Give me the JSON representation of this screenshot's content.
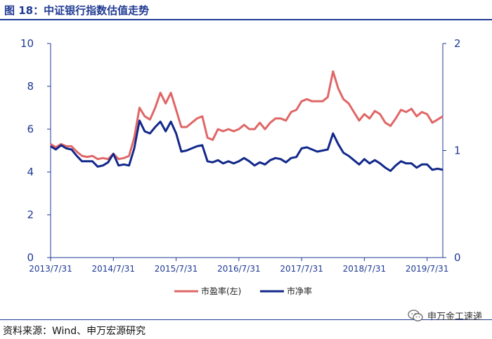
{
  "figure_title": "图 18：中证银行指数估值走势",
  "source": "资料来源：Wind、申万宏源研究",
  "watermark": "申万金工速递",
  "colors": {
    "title": "#1f3a93",
    "axis": "#1f3a93",
    "pe": "#e06666",
    "pb": "#12288a"
  },
  "chart_data": {
    "type": "line",
    "x_ticks": [
      "2013/7/31",
      "2014/7/31",
      "2015/7/31",
      "2016/7/31",
      "2017/7/31",
      "2018/7/31",
      "2019/7/31"
    ],
    "left_axis": {
      "ylim": [
        0,
        10
      ],
      "ticks": [
        "0",
        "2",
        "4",
        "6",
        "8",
        "10"
      ]
    },
    "right_axis": {
      "ylim": [
        0,
        2
      ],
      "ticks": [
        "0",
        "1",
        "2"
      ]
    },
    "legend": "bottom-center",
    "series": [
      {
        "name": "市盈率(左)",
        "axis": "left",
        "color": "#e06666",
        "values": [
          5.3,
          5.15,
          5.3,
          5.2,
          5.2,
          4.95,
          4.75,
          4.7,
          4.75,
          4.6,
          4.65,
          4.6,
          4.85,
          4.6,
          4.65,
          4.75,
          5.6,
          7.0,
          6.6,
          6.45,
          7.0,
          7.7,
          7.2,
          7.7,
          6.9,
          6.1,
          6.1,
          6.3,
          6.5,
          6.6,
          5.6,
          5.5,
          6.0,
          5.9,
          6.0,
          5.9,
          6.0,
          6.2,
          6.0,
          6.0,
          6.3,
          6.0,
          6.3,
          6.5,
          6.5,
          6.4,
          6.8,
          6.9,
          7.3,
          7.4,
          7.3,
          7.3,
          7.3,
          7.5,
          8.7,
          7.9,
          7.4,
          7.2,
          6.8,
          6.4,
          6.7,
          6.5,
          6.85,
          6.7,
          6.3,
          6.15,
          6.5,
          6.9,
          6.8,
          6.95,
          6.6,
          6.8,
          6.7,
          6.3,
          6.45,
          6.6
        ]
      },
      {
        "name": "市净率",
        "axis": "right",
        "color": "#12288a",
        "values": [
          1.04,
          1.01,
          1.05,
          1.02,
          1.01,
          0.95,
          0.9,
          0.9,
          0.9,
          0.85,
          0.86,
          0.89,
          0.97,
          0.86,
          0.87,
          0.86,
          1.02,
          1.28,
          1.18,
          1.16,
          1.22,
          1.27,
          1.18,
          1.27,
          1.16,
          0.99,
          1.0,
          1.02,
          1.04,
          1.05,
          0.9,
          0.89,
          0.91,
          0.88,
          0.9,
          0.88,
          0.9,
          0.93,
          0.9,
          0.86,
          0.89,
          0.87,
          0.91,
          0.93,
          0.92,
          0.89,
          0.93,
          0.94,
          1.02,
          1.03,
          1.01,
          0.99,
          1.0,
          1.01,
          1.16,
          1.06,
          0.98,
          0.95,
          0.91,
          0.87,
          0.92,
          0.88,
          0.91,
          0.88,
          0.84,
          0.81,
          0.86,
          0.9,
          0.88,
          0.88,
          0.84,
          0.87,
          0.87,
          0.82,
          0.83,
          0.82
        ]
      }
    ]
  }
}
